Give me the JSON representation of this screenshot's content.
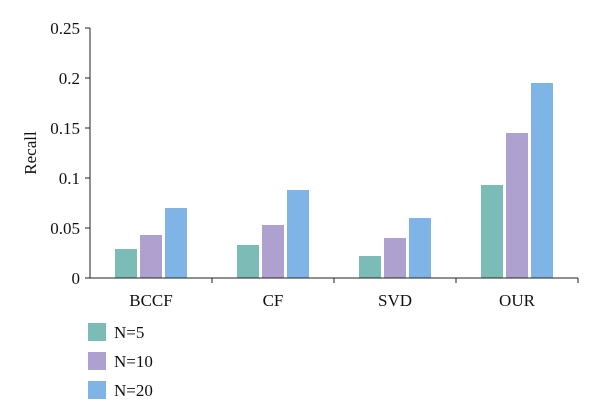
{
  "chart_data": {
    "type": "bar",
    "categories": [
      "BCCF",
      "CF",
      "SVD",
      "OUR"
    ],
    "series": [
      {
        "name": "N=5",
        "color": "#7bbcb7",
        "values": [
          0.029,
          0.033,
          0.022,
          0.093
        ]
      },
      {
        "name": "N=10",
        "color": "#aea1d0",
        "values": [
          0.043,
          0.053,
          0.04,
          0.145
        ]
      },
      {
        "name": "N=20",
        "color": "#7fb4e6",
        "values": [
          0.07,
          0.088,
          0.06,
          0.195
        ]
      }
    ],
    "title": "",
    "xlabel": "",
    "ylabel": "Recall",
    "ylim": [
      0,
      0.25
    ],
    "yticks": [
      "0",
      "0.05",
      "0.1",
      "0.15",
      "0.2",
      "0.25"
    ],
    "grid": false,
    "legend_position": "bottom-left"
  }
}
